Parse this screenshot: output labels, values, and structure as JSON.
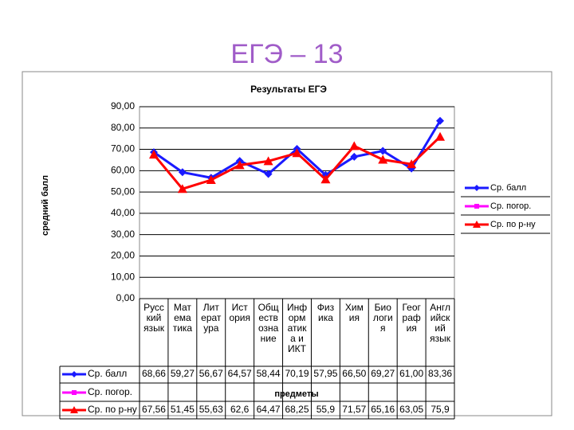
{
  "slide_title": "ЕГЭ – 13",
  "chart_data": {
    "type": "line",
    "title": "Результаты ЕГЭ",
    "y_label": "средний балл",
    "x_label": "предметы",
    "categories": [
      "Русс\nкий\nязык",
      "Мат\nема\nтика",
      "Лит\nерат\nура",
      "Ист\nория",
      "Общ\nеств\nозна\nние",
      "Инф\nорм\nатик\nа и\nИКТ",
      "Физ\nика",
      "Хим\nия",
      "Био\nлоги\nя",
      "Геог\nраф\nия",
      "Англ\nийск\nий\nязык"
    ],
    "series": [
      {
        "name": "Ср. балл",
        "color": "#1a1aff",
        "marker": "diamond",
        "values": [
          68.66,
          59.27,
          56.67,
          64.57,
          58.44,
          70.19,
          57.95,
          66.5,
          69.27,
          61.0,
          83.36
        ],
        "value_labels": [
          "68,66",
          "59,27",
          "56,67",
          "64,57",
          "58,44",
          "70,19",
          "57,95",
          "66,50",
          "69,27",
          "61,00",
          "83,36"
        ]
      },
      {
        "name": "Ср. погор.",
        "color": "#ff00ff",
        "marker": "square",
        "values": [
          null,
          null,
          null,
          null,
          null,
          null,
          null,
          null,
          null,
          null,
          null
        ]
      },
      {
        "name": "Ср. по р-ну",
        "color": "#ff0000",
        "marker": "triangle",
        "values": [
          67.56,
          51.45,
          55.63,
          62.6,
          64.47,
          68.25,
          55.9,
          71.57,
          65.16,
          63.05,
          75.9
        ],
        "value_labels": [
          "67,56",
          "51,45",
          "55,63",
          "62,6",
          "64,47",
          "68,25",
          "55,9",
          "71,57",
          "65,16",
          "63,05",
          "75,9"
        ]
      }
    ],
    "ylim": [
      0,
      90
    ],
    "yticks": [
      {
        "value": 0,
        "label": "0,00"
      },
      {
        "value": 10,
        "label": "10,00"
      },
      {
        "value": 20,
        "label": "20,00"
      },
      {
        "value": 30,
        "label": "30,00"
      },
      {
        "value": 40,
        "label": "40,00"
      },
      {
        "value": 50,
        "label": "50,00"
      },
      {
        "value": 60,
        "label": "60,00"
      },
      {
        "value": 70,
        "label": "70,00"
      },
      {
        "value": 80,
        "label": "80,00"
      },
      {
        "value": 90,
        "label": "90,00"
      }
    ],
    "grid": true,
    "legend": "right"
  }
}
